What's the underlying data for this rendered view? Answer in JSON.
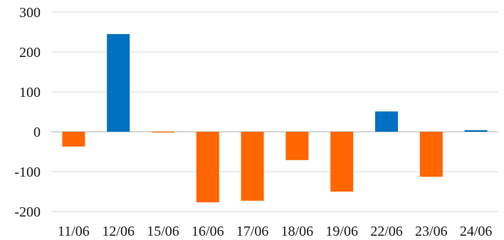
{
  "chart_data": {
    "type": "bar",
    "title": "",
    "xlabel": "",
    "ylabel": "",
    "categories": [
      "11/06",
      "12/06",
      "15/06",
      "16/06",
      "17/06",
      "18/06",
      "19/06",
      "22/06",
      "23/06",
      "24/06"
    ],
    "values": [
      -37,
      245,
      -2,
      -177,
      -173,
      -71,
      -150,
      51,
      -113,
      4
    ],
    "ylim": [
      -200,
      300
    ],
    "yticks": [
      "300",
      "200",
      "100",
      "0",
      "-100",
      "-200"
    ],
    "ytick_values": [
      300,
      200,
      100,
      0,
      -100,
      -200
    ],
    "grid": true,
    "legend": "none",
    "colors": {
      "positive": "#0070c0",
      "negative": "#ff6600"
    }
  }
}
